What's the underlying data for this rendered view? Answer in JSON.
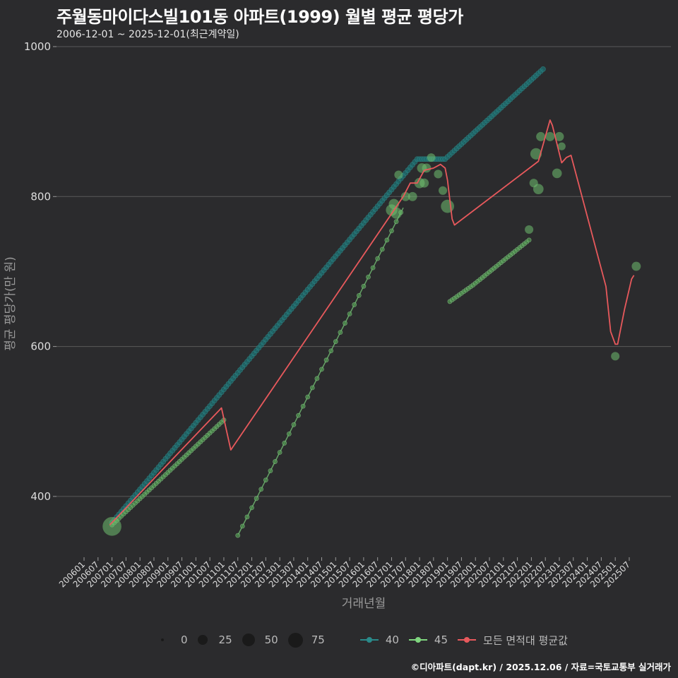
{
  "header": {
    "title": "주월동마이다스빌101동 아파트(1999) 월별 평균 평당가",
    "subtitle": "2006-12-01 ~ 2025-12-01(최근계약일)"
  },
  "footer": "©디아파트(dapt.kr) / 2025.12.06 / 자료=국토교통부 실거래가",
  "legend": {
    "size_labels": [
      "0",
      "25",
      "50",
      "75"
    ],
    "series_labels": [
      "40",
      "45",
      "모든 면적대 평균값"
    ]
  },
  "colors": {
    "background": "#2b2b2d",
    "grid": "#5a5a5a",
    "s40": "#2a7f7f",
    "s45": "#7fd67f",
    "avg": "#e8595c",
    "points": "#6fbf6f"
  },
  "chart_data": {
    "type": "line",
    "title": "주월동마이다스빌101동 아파트(1999) 월별 평균 평당가",
    "subtitle": "2006-12-01 ~ 2025-12-01(최근계약일)",
    "xlabel": "거래년월",
    "ylabel": "평균 평당가(만 원)",
    "ylim": [
      300,
      1000
    ],
    "yticks": [
      400,
      600,
      800,
      1000
    ],
    "grid": true,
    "legend_position": "bottom",
    "xticks": [
      "200601",
      "200607",
      "200701",
      "200707",
      "200801",
      "200807",
      "200901",
      "200907",
      "201001",
      "201007",
      "201101",
      "201107",
      "201201",
      "201207",
      "201301",
      "201307",
      "201401",
      "201407",
      "201501",
      "201507",
      "201601",
      "201607",
      "201701",
      "201707",
      "201801",
      "201807",
      "201901",
      "201907",
      "202001",
      "202007",
      "202101",
      "202107",
      "202201",
      "202207",
      "202301",
      "202307",
      "202401",
      "202407",
      "202501",
      "202507"
    ],
    "series": [
      {
        "name": "40",
        "color": "#2a7f7f",
        "points": [
          [
            "200701",
            365
          ],
          [
            "201712",
            850
          ],
          [
            "201812",
            850
          ],
          [
            "202206",
            970
          ]
        ]
      },
      {
        "name": "45",
        "color": "#7fd67f",
        "points": [
          [
            "200701",
            362
          ],
          [
            "201101",
            502
          ]
        ]
      },
      {
        "name": "45",
        "color": "#7fd67f",
        "points": [
          [
            "201107",
            348
          ],
          [
            "201706",
            785
          ]
        ]
      },
      {
        "name": "45",
        "color": "#7fd67f",
        "points": [
          [
            "201902",
            660
          ],
          [
            "201912",
            682
          ],
          [
            "202012",
            712
          ],
          [
            "202112",
            742
          ]
        ]
      },
      {
        "name": "모든 면적대 평균값",
        "color": "#e8595c",
        "points": [
          [
            "200612",
            362
          ],
          [
            "201012",
            518
          ],
          [
            "201104",
            462
          ],
          [
            "201706",
            800
          ],
          [
            "201709",
            818
          ],
          [
            "201712",
            818
          ],
          [
            "201803",
            835
          ],
          [
            "201807",
            838
          ],
          [
            "201810",
            843
          ],
          [
            "201812",
            838
          ],
          [
            "201901",
            822
          ],
          [
            "201903",
            770
          ],
          [
            "201904",
            762
          ],
          [
            "202204",
            847
          ],
          [
            "202207",
            880
          ],
          [
            "202209",
            902
          ],
          [
            "202210",
            895
          ],
          [
            "202302",
            845
          ],
          [
            "202304",
            852
          ],
          [
            "202306",
            855
          ],
          [
            "202409",
            680
          ],
          [
            "202411",
            620
          ],
          [
            "202501",
            603
          ],
          [
            "202502",
            603
          ],
          [
            "202505",
            650
          ],
          [
            "202508",
            690
          ],
          [
            "202509",
            695
          ]
        ]
      }
    ],
    "scatter_points": [
      {
        "x": "200701",
        "y": 360,
        "size": 75
      },
      {
        "x": "201701",
        "y": 782,
        "size": 20
      },
      {
        "x": "201702",
        "y": 790,
        "size": 15
      },
      {
        "x": "201703",
        "y": 778,
        "size": 20
      },
      {
        "x": "201704",
        "y": 829,
        "size": 8
      },
      {
        "x": "201707",
        "y": 800,
        "size": 10
      },
      {
        "x": "201710",
        "y": 800,
        "size": 10
      },
      {
        "x": "201801",
        "y": 818,
        "size": 15
      },
      {
        "x": "201802",
        "y": 838,
        "size": 12
      },
      {
        "x": "201803",
        "y": 818,
        "size": 10
      },
      {
        "x": "201804",
        "y": 838,
        "size": 10
      },
      {
        "x": "201806",
        "y": 852,
        "size": 8
      },
      {
        "x": "201809",
        "y": 830,
        "size": 8
      },
      {
        "x": "201811",
        "y": 808,
        "size": 8
      },
      {
        "x": "201901",
        "y": 787,
        "size": 30
      },
      {
        "x": "202112",
        "y": 756,
        "size": 8
      },
      {
        "x": "202202",
        "y": 818,
        "size": 8
      },
      {
        "x": "202203",
        "y": 857,
        "size": 20
      },
      {
        "x": "202204",
        "y": 810,
        "size": 15
      },
      {
        "x": "202205",
        "y": 880,
        "size": 10
      },
      {
        "x": "202209",
        "y": 880,
        "size": 10
      },
      {
        "x": "202212",
        "y": 831,
        "size": 12
      },
      {
        "x": "202301",
        "y": 880,
        "size": 10
      },
      {
        "x": "202302",
        "y": 867,
        "size": 6
      },
      {
        "x": "202501",
        "y": 587,
        "size": 8
      },
      {
        "x": "202510",
        "y": 707,
        "size": 10
      }
    ]
  }
}
